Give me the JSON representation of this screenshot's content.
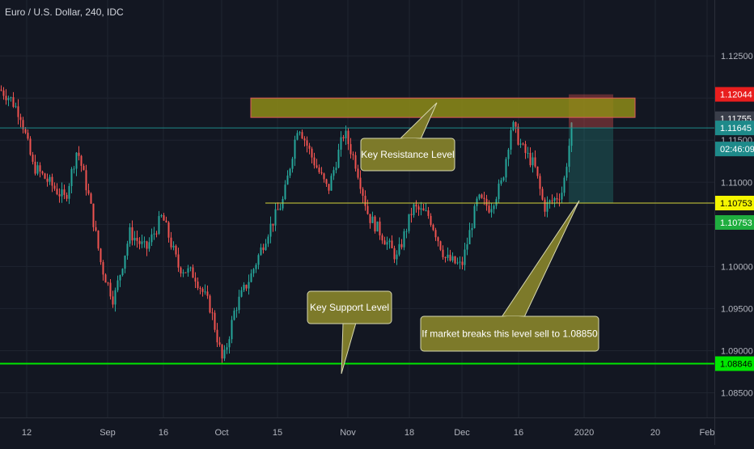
{
  "header": {
    "title": "Euro / U.S. Dollar, 240, IDC"
  },
  "colors": {
    "background": "#131722",
    "up": "#26a69a",
    "down": "#ef5350",
    "grid": "#1f2430",
    "axis_text": "#b2b5be",
    "resistance_zone": "#8e8c18",
    "callout_fill": "#7d7a2a",
    "support_line": "#00e600",
    "breakdown_line": "#d4d43a",
    "current_line": "#1e8a8a"
  },
  "chart_data": {
    "type": "candlestick",
    "y_ticks": [
      1.125,
      1.12,
      1.115,
      1.11,
      1.105,
      1.1,
      1.095,
      1.09,
      1.085
    ],
    "y_tick_labels": [
      "1.12500",
      "1.12000",
      "1.11500",
      "1.11000",
      "1.10500",
      "1.10000",
      "1.09500",
      "1.09000",
      "1.08500"
    ],
    "ylim": [
      1.0838,
      1.1278
    ],
    "x_tick_labels": [
      "12",
      "Sep",
      "16",
      "Oct",
      "15",
      "Nov",
      "18",
      "Dec",
      "16",
      "2020",
      "20",
      "Feb"
    ],
    "close_path": [
      [
        0,
        1.121
      ],
      [
        12,
        1.12
      ],
      [
        25,
        1.118
      ],
      [
        40,
        1.112
      ],
      [
        60,
        1.11
      ],
      [
        80,
        1.108
      ],
      [
        95,
        1.114
      ],
      [
        110,
        1.108
      ],
      [
        125,
        1.1
      ],
      [
        140,
        1.096
      ],
      [
        160,
        1.104
      ],
      [
        180,
        1.102
      ],
      [
        200,
        1.106
      ],
      [
        220,
        1.1
      ],
      [
        240,
        1.099
      ],
      [
        260,
        1.095
      ],
      [
        275,
        1.0885
      ],
      [
        290,
        1.095
      ],
      [
        310,
        1.099
      ],
      [
        330,
        1.104
      ],
      [
        350,
        1.108
      ],
      [
        368,
        1.117
      ],
      [
        385,
        1.113
      ],
      [
        405,
        1.109
      ],
      [
        425,
        1.116
      ],
      [
        440,
        1.112
      ],
      [
        455,
        1.106
      ],
      [
        470,
        1.104
      ],
      [
        490,
        1.101
      ],
      [
        510,
        1.107
      ],
      [
        530,
        1.106
      ],
      [
        550,
        1.101
      ],
      [
        570,
        1.1
      ],
      [
        590,
        1.108
      ],
      [
        605,
        1.107
      ],
      [
        620,
        1.11
      ],
      [
        632,
        1.117
      ],
      [
        645,
        1.114
      ],
      [
        660,
        1.112
      ],
      [
        672,
        1.107
      ],
      [
        685,
        1.108
      ],
      [
        695,
        1.109
      ],
      [
        706,
        1.1164
      ]
    ],
    "levels": [
      {
        "name": "current",
        "price": 1.11645,
        "label": "1.11645",
        "timer": "02:46:09",
        "label_color": "#1e8a8a"
      },
      {
        "name": "resistance-top",
        "price": 1.12044,
        "label": "1.12044",
        "label_color": "#e91e1e"
      },
      {
        "name": "resistance-base",
        "price": 1.11755,
        "label": "1.11755",
        "label_color": "#3a3e4a"
      },
      {
        "name": "breakdown",
        "price": 1.10753,
        "label": "1.10753",
        "label_color": "#f5f500"
      },
      {
        "name": "breakdown-2",
        "price": 1.10753,
        "label": "1.10753",
        "label_color": "#1fae3f"
      },
      {
        "name": "support",
        "price": 1.08846,
        "label": "1.08846",
        "label_color": "#00e600"
      }
    ],
    "resistance_zone": {
      "low": 1.1177,
      "high": 1.12
    },
    "annotations": [
      {
        "name": "key-resistance-label",
        "text": "Key Resistance Level"
      },
      {
        "name": "key-support-label",
        "text": "Key Support Level"
      },
      {
        "name": "breakdown-note",
        "text": "If market breaks this level sell to 1.08850"
      }
    ]
  }
}
